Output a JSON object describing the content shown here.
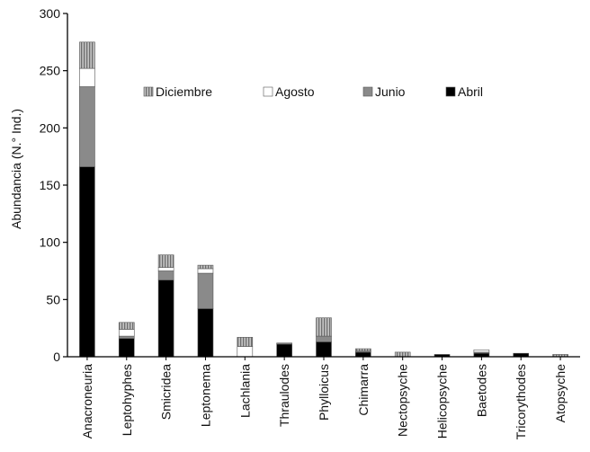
{
  "chart_data": {
    "type": "bar",
    "stacked": true,
    "title": "",
    "xlabel": "",
    "ylabel": "Abundancia (N.° Ind.)",
    "ylim": [
      0,
      300
    ],
    "yticks": [
      0,
      50,
      100,
      150,
      200,
      250,
      300
    ],
    "grid": false,
    "legend_position": "top-right (inside plot)",
    "categories": [
      "Anacroneuria",
      "Leptohyphes",
      "Smicridea",
      "Leptonema",
      "Lachlania",
      "Thraulodes",
      "Phylloicus",
      "Chimarra",
      "Nectopsyche",
      "Helicopsyche",
      "Baetodes",
      "Tricorythodes",
      "Atopsyche"
    ],
    "legend_order": [
      "Diciembre",
      "Agosto",
      "Junio",
      "Abril"
    ],
    "series": [
      {
        "name": "Abril",
        "color": "#000000",
        "pattern": "solid",
        "values": [
          166,
          16,
          67,
          42,
          0,
          11,
          13,
          4,
          0,
          2,
          3,
          3,
          0
        ]
      },
      {
        "name": "Junio",
        "color": "#8a8a8a",
        "pattern": "solid",
        "values": [
          70,
          2,
          8,
          31,
          0,
          1,
          5,
          1,
          0,
          0,
          1,
          0,
          0
        ]
      },
      {
        "name": "Agosto",
        "color": "#ffffff",
        "pattern": "solid",
        "values": [
          16,
          6,
          3,
          4,
          9,
          0,
          0,
          0,
          0,
          0,
          2,
          0,
          0
        ]
      },
      {
        "name": "Diciembre",
        "color": "#a6a6a6",
        "pattern": "vertical-stripes",
        "values": [
          23,
          6,
          11,
          3,
          8,
          0,
          16,
          2,
          4,
          0,
          0,
          0,
          2
        ]
      }
    ]
  }
}
